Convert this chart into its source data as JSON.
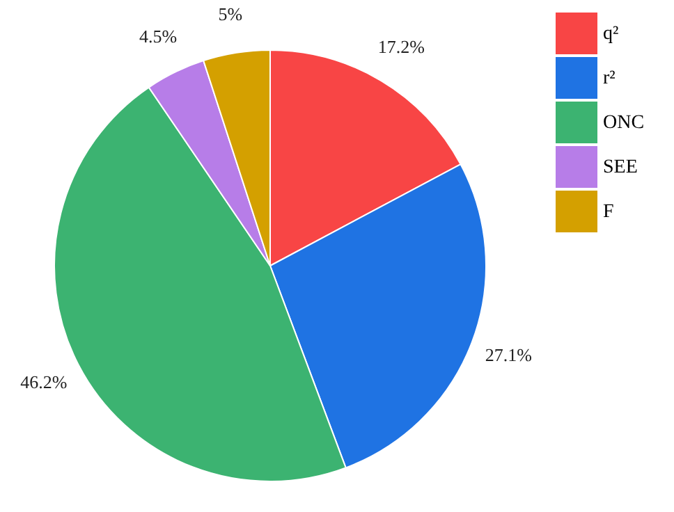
{
  "chart_data": {
    "type": "pie",
    "categories": [
      "q²",
      "r²",
      "ONC",
      "SEE",
      "F"
    ],
    "values": [
      17.2,
      27.1,
      46.2,
      4.5,
      5
    ],
    "colors": [
      "#f84545",
      "#1f73e3",
      "#3cb371",
      "#b77de8",
      "#d4a000"
    ],
    "value_labels": [
      "17.2%",
      "27.1%",
      "46.2%",
      "4.5%",
      "5%"
    ],
    "legend": "top right"
  }
}
